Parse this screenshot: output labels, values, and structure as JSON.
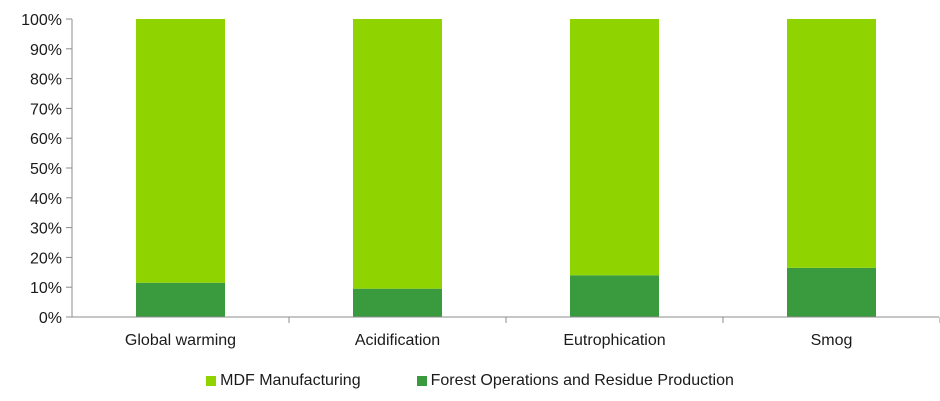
{
  "chart_data": {
    "type": "bar",
    "stacked": true,
    "categories": [
      "Global warming",
      "Acidification",
      "Eutrophication",
      "Smog"
    ],
    "series": [
      {
        "name": "Forest Operations and Residue Production",
        "color": "#3a9a3e",
        "values": [
          11.5,
          9.5,
          14,
          16.5
        ]
      },
      {
        "name": "MDF Manufacturing",
        "color": "#8fd400",
        "values": [
          88.5,
          90.5,
          86,
          83.5
        ]
      }
    ],
    "ylim": [
      0,
      100
    ],
    "yticks": [
      "0%",
      "10%",
      "20%",
      "30%",
      "40%",
      "50%",
      "60%",
      "70%",
      "80%",
      "90%",
      "100%"
    ],
    "grid": false,
    "legend_position": "bottom",
    "legend_order": [
      "MDF Manufacturing",
      "Forest Operations and Residue Production"
    ],
    "axis_color": "#8c8c8c"
  }
}
